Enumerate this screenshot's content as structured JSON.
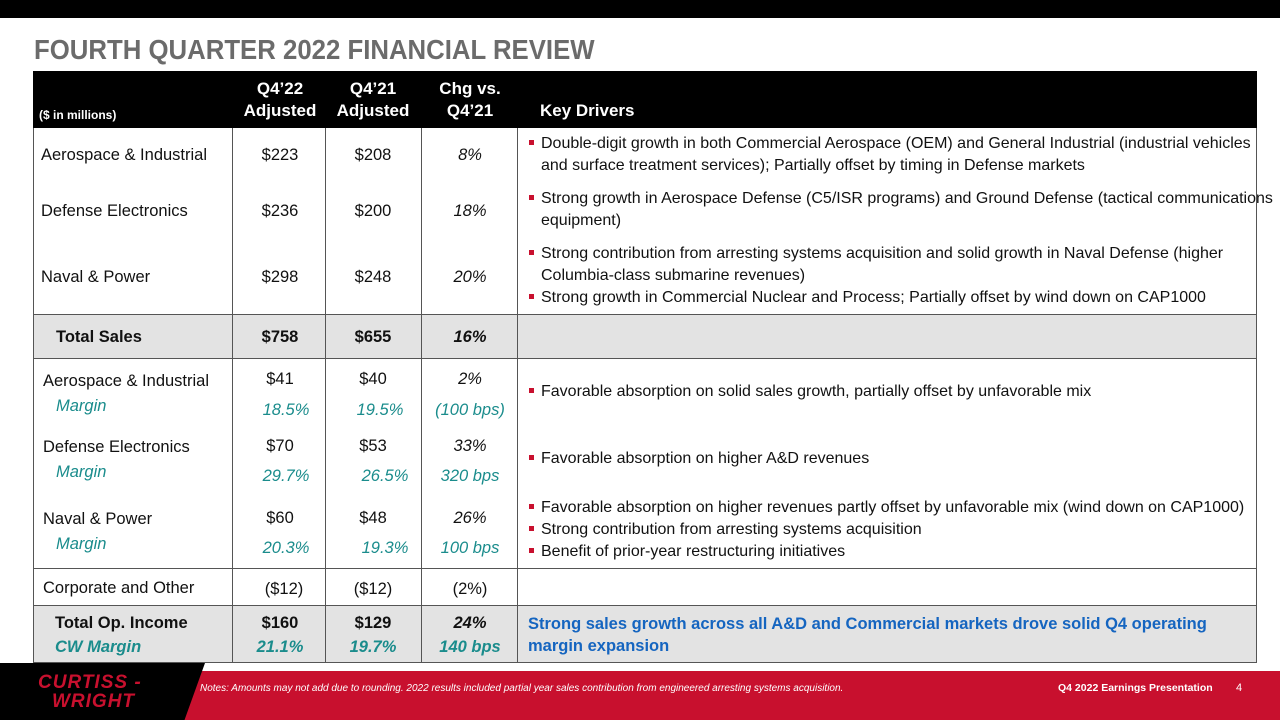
{
  "title": "FOURTH QUARTER 2022 FINANCIAL REVIEW",
  "header": {
    "units": "($ in millions)",
    "col1": [
      "Q4’22",
      "Adjusted"
    ],
    "col2": [
      "Q4’21",
      "Adjusted"
    ],
    "col3": [
      "Chg vs.",
      "Q4’21"
    ],
    "col4": "Key Drivers"
  },
  "sales_rows": [
    {
      "name": "Aerospace & Industrial",
      "q22": "$223",
      "q21": "$208",
      "chg": "8%"
    },
    {
      "name": "Defense Electronics",
      "q22": "$236",
      "q21": "$200",
      "chg": "18%"
    },
    {
      "name": "Naval & Power",
      "q22": "$298",
      "q21": "$248",
      "chg": "20%"
    }
  ],
  "sales_drivers": [
    [
      "Double-digit growth in both Commercial Aerospace (OEM) and General Industrial (industrial vehicles",
      "and surface treatment services); Partially offset by timing in Defense markets"
    ],
    [
      "Strong growth in Aerospace Defense (C5/ISR programs) and Ground Defense (tactical communications",
      "equipment)"
    ],
    [
      "Strong contribution from arresting systems acquisition and solid growth in Naval Defense (higher",
      "Columbia-class submarine revenues)"
    ],
    [
      "Strong growth in Commercial Nuclear and Process; Partially offset by wind down on CAP1000"
    ]
  ],
  "total_sales": {
    "name": "Total Sales",
    "q22": "$758",
    "q21": "$655",
    "chg": "16%"
  },
  "op_rows": [
    {
      "name": "Aerospace & Industrial",
      "q22": "$41",
      "q21": "$40",
      "chg": "2%",
      "margin_label": "Margin",
      "m22": "18.5%",
      "m21": "19.5%",
      "mchg": "(100 bps)"
    },
    {
      "name": "Defense Electronics",
      "q22": "$70",
      "q21": "$53",
      "chg": "33%",
      "margin_label": "Margin",
      "m22": "29.7%",
      "m21": "26.5%",
      "mchg": "320 bps"
    },
    {
      "name": "Naval & Power",
      "q22": "$60",
      "q21": "$48",
      "chg": "26%",
      "margin_label": "Margin",
      "m22": "20.3%",
      "m21": "19.3%",
      "mchg": "100 bps"
    }
  ],
  "op_drivers": [
    "Favorable absorption on solid sales growth, partially offset by unfavorable mix",
    "Favorable absorption on higher A&D revenues",
    "Favorable absorption on higher revenues partly offset by unfavorable mix (wind down on CAP1000)",
    "Strong contribution from arresting systems acquisition",
    "Benefit of prior-year restructuring initiatives"
  ],
  "corporate": {
    "name": "Corporate and Other",
    "q22": "($12)",
    "q21": "($12)",
    "chg": "(2%)"
  },
  "total_op": {
    "name": "Total Op. Income",
    "q22": "$160",
    "q21": "$129",
    "chg": "24%",
    "margin_label": "CW Margin",
    "m22": "21.1%",
    "m21": "19.7%",
    "mchg": "140 bps",
    "driver": [
      "Strong sales growth across all A&D and Commercial markets drove solid Q4 operating",
      "margin expansion"
    ]
  },
  "footer": {
    "logo": [
      "CURTISS -",
      "WRIGHT"
    ],
    "note": "Notes: Amounts may not add due to rounding. 2022 results included partial year sales contribution from engineered arresting systems acquisition.",
    "presentation": "Q4 2022 Earnings Presentation",
    "page": "4"
  },
  "colors": {
    "accent_red": "#c8102e",
    "teal": "#1a8c8c",
    "blue": "#1565c0",
    "title_gray": "#6b6b6b"
  }
}
